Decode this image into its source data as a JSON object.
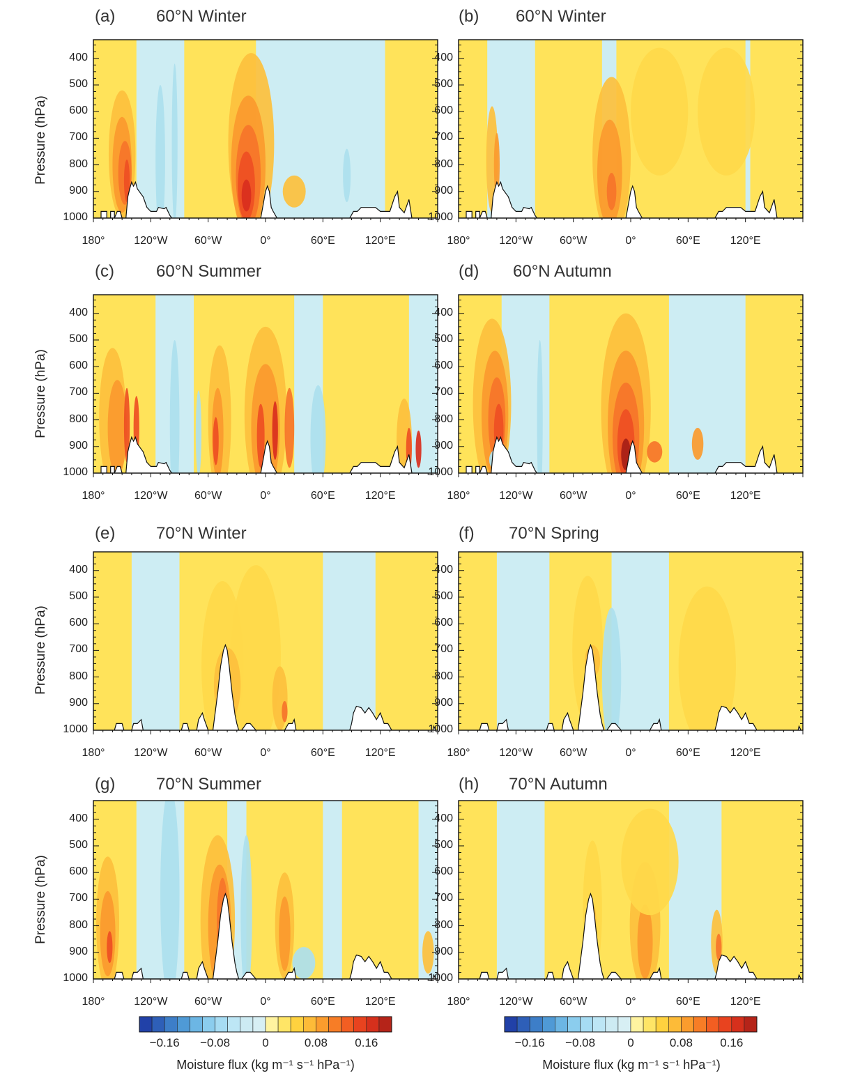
{
  "axis": {
    "ylabel": "Pressure (hPa)",
    "yticks": [
      "400",
      "500",
      "600",
      "700",
      "800",
      "900",
      "1000"
    ],
    "xticks": [
      "180°",
      "120°W",
      "60°W",
      "0°",
      "60°E",
      "120°E"
    ]
  },
  "panels": [
    {
      "label": "(a)",
      "title": "60°N Winter"
    },
    {
      "label": "(b)",
      "title": "60°N Winter"
    },
    {
      "label": "(c)",
      "title": "60°N Summer"
    },
    {
      "label": "(d)",
      "title": "60°N Autumn"
    },
    {
      "label": "(e)",
      "title": "70°N Winter"
    },
    {
      "label": "(f)",
      "title": "70°N Spring"
    },
    {
      "label": "(g)",
      "title": "70°N Summer"
    },
    {
      "label": "(h)",
      "title": "70°N Autumn"
    }
  ],
  "colorbar": {
    "title": "Moisture flux (kg m⁻¹ s⁻¹ hPa⁻¹)",
    "ticks": [
      "−0.16",
      "−0.08",
      "0",
      "0.08",
      "0.16"
    ],
    "colors": [
      "#2141a8",
      "#2e5fb8",
      "#3d7ec8",
      "#4f9ad6",
      "#6cb6e4",
      "#8bcdee",
      "#a6dcf3",
      "#bde6f5",
      "#cdebf3",
      "#d7eff4",
      "#fff3a0",
      "#ffe566",
      "#ffd23f",
      "#fdbb38",
      "#fb9c2d",
      "#f77d26",
      "#f25e22",
      "#e8431f",
      "#d6301c",
      "#b52419"
    ]
  },
  "chart_data": [
    {
      "type": "heatmap",
      "panel": "(a)",
      "title": "60°N Winter",
      "ylabel": "Pressure (hPa)",
      "ylim": [
        1000,
        330
      ],
      "xlim": [
        -180,
        180
      ],
      "xticks": [
        "180°",
        "120°W",
        "60°W",
        "0°",
        "60°E",
        "120°E"
      ],
      "yticks": [
        400,
        500,
        600,
        700,
        800,
        900,
        1000
      ],
      "positive_cores": [
        {
          "lon": -150,
          "p": 850,
          "max": 0.16
        },
        {
          "lon": -20,
          "p": 920,
          "max": 0.2
        }
      ]
    },
    {
      "type": "heatmap",
      "panel": "(b)",
      "title": "60°N Winter",
      "ylabel": "",
      "ylim": [
        1000,
        330
      ],
      "xlim": [
        -180,
        180
      ],
      "positive_cores": [
        {
          "lon": -140,
          "p": 800,
          "max": 0.1
        },
        {
          "lon": -20,
          "p": 910,
          "max": 0.14
        }
      ]
    },
    {
      "type": "heatmap",
      "panel": "(c)",
      "title": "60°N Summer",
      "ylabel": "Pressure (hPa)",
      "ylim": [
        1000,
        330
      ],
      "xlim": [
        -180,
        180
      ],
      "positive_cores": [
        {
          "lon": -150,
          "p": 830,
          "max": 0.14
        },
        {
          "lon": -50,
          "p": 860,
          "max": 0.14
        },
        {
          "lon": 0,
          "p": 850,
          "max": 0.16
        },
        {
          "lon": 160,
          "p": 900,
          "max": 0.16
        }
      ]
    },
    {
      "type": "heatmap",
      "panel": "(d)",
      "title": "60°N Autumn",
      "ylabel": "",
      "ylim": [
        1000,
        330
      ],
      "xlim": [
        -180,
        180
      ],
      "positive_cores": [
        {
          "lon": -140,
          "p": 760,
          "max": 0.16
        },
        {
          "lon": -5,
          "p": 930,
          "max": 0.22
        }
      ]
    },
    {
      "type": "heatmap",
      "panel": "(e)",
      "title": "70°N Winter",
      "ylabel": "Pressure (hPa)",
      "ylim": [
        1000,
        330
      ],
      "xlim": [
        -180,
        180
      ],
      "positive_cores": [
        {
          "lon": 15,
          "p": 920,
          "max": 0.1
        }
      ]
    },
    {
      "type": "heatmap",
      "panel": "(f)",
      "title": "70°N Spring",
      "ylabel": "",
      "ylim": [
        1000,
        330
      ],
      "xlim": [
        -180,
        180
      ],
      "positive_cores": [
        {
          "lon": -45,
          "p": 710,
          "max": 0.06
        }
      ]
    },
    {
      "type": "heatmap",
      "panel": "(g)",
      "title": "70°N Summer",
      "ylabel": "Pressure (hPa)",
      "ylim": [
        1000,
        330
      ],
      "xlim": [
        -180,
        180
      ],
      "positive_cores": [
        {
          "lon": -165,
          "p": 850,
          "max": 0.14
        },
        {
          "lon": -45,
          "p": 780,
          "max": 0.16
        },
        {
          "lon": 20,
          "p": 830,
          "max": 0.1
        }
      ]
    },
    {
      "type": "heatmap",
      "panel": "(h)",
      "title": "70°N Autumn",
      "ylabel": "",
      "ylim": [
        1000,
        330
      ],
      "xlim": [
        -180,
        180
      ],
      "positive_cores": [
        {
          "lon": 15,
          "p": 880,
          "max": 0.12
        },
        {
          "lon": 90,
          "p": 890,
          "max": 0.1
        }
      ]
    }
  ]
}
